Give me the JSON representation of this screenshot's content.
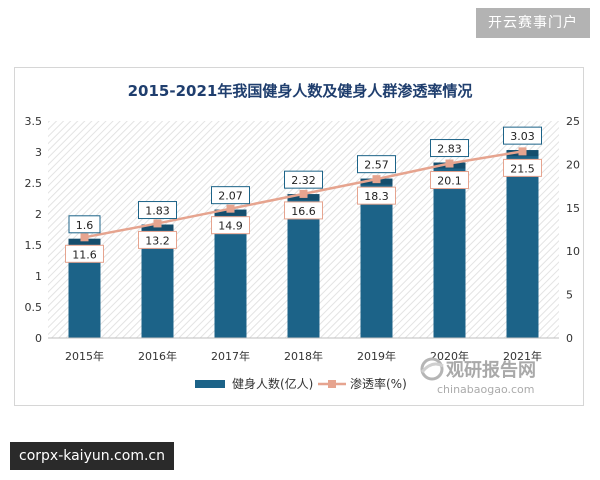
{
  "header": {
    "site_badge": "开云赛事门户"
  },
  "footer": {
    "domain_badge": "corpx-kaiyun.com.cn"
  },
  "watermark": {
    "brand": "观研报告网",
    "domain": "chinabaogao.com"
  },
  "colors": {
    "bar": "#1c6388",
    "bar_cap": "#154e6d",
    "line": "#e6a48f",
    "title": "#1f3e6e"
  },
  "chart_data": {
    "type": "bar",
    "title": "2015-2021年我国健身人数及健身人群渗透率情况",
    "categories": [
      "2015年",
      "2016年",
      "2017年",
      "2018年",
      "2019年",
      "2020年",
      "2021年"
    ],
    "series": [
      {
        "name": "健身人数(亿人)",
        "type": "bar",
        "axis": "left",
        "values": [
          1.6,
          1.83,
          2.07,
          2.32,
          2.57,
          2.83,
          3.03
        ],
        "labels": [
          "1.6",
          "1.83",
          "2.07",
          "2.32",
          "2.57",
          "2.83",
          "3.03"
        ]
      },
      {
        "name": "渗透率(%)",
        "type": "line",
        "axis": "right",
        "values": [
          11.6,
          13.2,
          14.9,
          16.6,
          18.3,
          20.1,
          21.5
        ],
        "labels": [
          "11.6",
          "13.2",
          "14.9",
          "16.6",
          "18.3",
          "20.1",
          "21.5"
        ]
      }
    ],
    "y_left": {
      "min": 0,
      "max": 3.5,
      "ticks": [
        "0",
        "0.5",
        "1",
        "1.5",
        "2",
        "2.5",
        "3",
        "3.5"
      ]
    },
    "y_right": {
      "min": 0,
      "max": 25,
      "ticks": [
        "0",
        "5",
        "10",
        "15",
        "20",
        "25"
      ]
    },
    "legend": "bottom",
    "grid": false
  }
}
